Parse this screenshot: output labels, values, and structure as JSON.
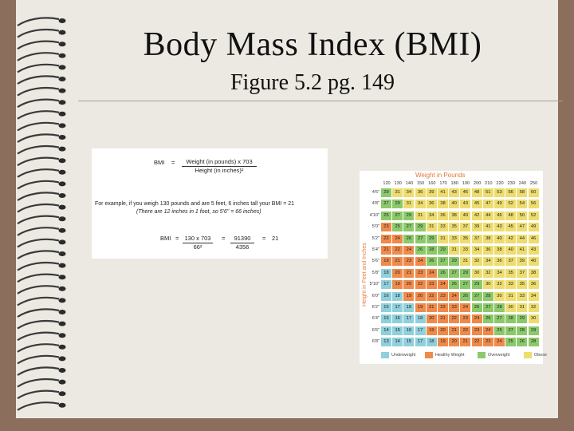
{
  "slide": {
    "title": "Body Mass Index (BMI)",
    "subtitle": "Figure 5.2 pg. 149"
  },
  "formula": {
    "bmi_label": "BMI",
    "equals": "=",
    "numerator": "Weight (in pounds) x 703",
    "denominator": "Height (in inches)²",
    "example_line1": "For example, if you weigh 130 pounds and are 5 feet, 6 inches tall your BMI = 21",
    "example_line2": "(There are 12 inches in 1 foot, so 5'6\" = 66 inches)",
    "calc": {
      "label": "BMI",
      "eq1": "=",
      "num1": "130 x 703",
      "den1": "66²",
      "eq2": "=",
      "num2": "91390",
      "den2": "4356",
      "eq3": "=",
      "result": "21"
    }
  },
  "table": {
    "weight_header": "Weight in Pounds",
    "height_header": "Height in Feet and Inches",
    "weights": [
      "120",
      "130",
      "140",
      "150",
      "160",
      "170",
      "180",
      "190",
      "200",
      "210",
      "220",
      "230",
      "240",
      "250"
    ],
    "heights": [
      "4'6\"",
      "4'8\"",
      "4'10\"",
      "5'0\"",
      "5'2\"",
      "5'4\"",
      "5'6\"",
      "5'8\"",
      "5'10\"",
      "6'0\"",
      "6'2\"",
      "6'4\"",
      "6'6\"",
      "6'8\""
    ],
    "rows": [
      [
        "29",
        "31",
        "34",
        "36",
        "39",
        "41",
        "43",
        "46",
        "48",
        "51",
        "53",
        "56",
        "58",
        "60"
      ],
      [
        "27",
        "29",
        "31",
        "34",
        "36",
        "38",
        "40",
        "43",
        "45",
        "47",
        "49",
        "52",
        "54",
        "56"
      ],
      [
        "25",
        "27",
        "29",
        "31",
        "34",
        "36",
        "38",
        "40",
        "42",
        "44",
        "46",
        "48",
        "50",
        "52"
      ],
      [
        "23",
        "25",
        "27",
        "29",
        "31",
        "33",
        "35",
        "37",
        "39",
        "41",
        "43",
        "45",
        "47",
        "49"
      ],
      [
        "22",
        "24",
        "26",
        "27",
        "29",
        "31",
        "33",
        "35",
        "37",
        "38",
        "40",
        "42",
        "44",
        "46"
      ],
      [
        "21",
        "22",
        "24",
        "26",
        "28",
        "29",
        "31",
        "33",
        "34",
        "36",
        "38",
        "40",
        "41",
        "43"
      ],
      [
        "19",
        "21",
        "23",
        "24",
        "26",
        "27",
        "29",
        "31",
        "32",
        "34",
        "36",
        "37",
        "39",
        "40"
      ],
      [
        "18",
        "20",
        "21",
        "23",
        "24",
        "26",
        "27",
        "29",
        "30",
        "32",
        "34",
        "35",
        "37",
        "38"
      ],
      [
        "17",
        "19",
        "20",
        "22",
        "23",
        "24",
        "26",
        "27",
        "29",
        "30",
        "32",
        "33",
        "35",
        "36"
      ],
      [
        "16",
        "18",
        "19",
        "20",
        "22",
        "23",
        "24",
        "26",
        "27",
        "28",
        "30",
        "31",
        "33",
        "34"
      ],
      [
        "15",
        "17",
        "18",
        "19",
        "21",
        "22",
        "23",
        "24",
        "26",
        "27",
        "28",
        "30",
        "31",
        "32"
      ],
      [
        "15",
        "16",
        "17",
        "18",
        "20",
        "21",
        "22",
        "23",
        "24",
        "26",
        "27",
        "28",
        "29",
        "30"
      ],
      [
        "14",
        "15",
        "16",
        "17",
        "19",
        "20",
        "21",
        "22",
        "23",
        "24",
        "25",
        "27",
        "28",
        "29"
      ],
      [
        "13",
        "14",
        "15",
        "17",
        "18",
        "19",
        "20",
        "21",
        "22",
        "23",
        "24",
        "25",
        "26",
        "28"
      ]
    ],
    "legend": [
      {
        "label": "Underweight",
        "color": "#8fd0dc"
      },
      {
        "label": "Healthy Weight",
        "color": "#ef8a4a"
      },
      {
        "label": "Overweight",
        "color": "#8cc96a"
      },
      {
        "label": "Obese",
        "color": "#eedd6e"
      }
    ]
  },
  "colors": {
    "underweight": "#8fd0dc",
    "healthy": "#ef8a4a",
    "overweight": "#8cc96a",
    "obese": "#eedd6e",
    "frame": "#8b6e5c",
    "slide_bg": "#ece9e2"
  }
}
